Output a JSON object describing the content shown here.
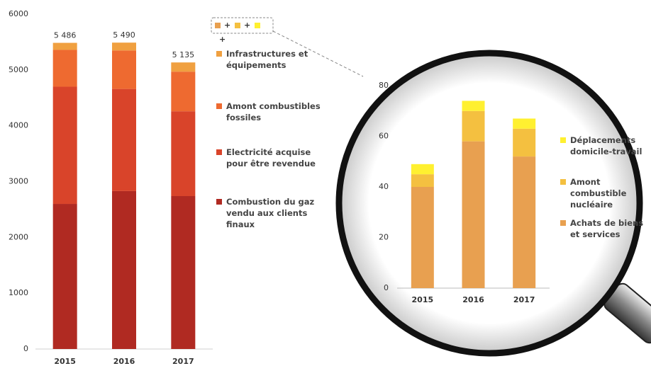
{
  "chart_data": [
    {
      "type": "bar",
      "stacked": true,
      "categories": [
        "2015",
        "2016",
        "2017"
      ],
      "series": [
        {
          "name": "Combustion du gaz vendu aux clients finaux",
          "color": "#b02a22",
          "values": [
            2600,
            2830,
            2740
          ]
        },
        {
          "name": "Electricité acquise pour être revendue",
          "color": "#d9442a",
          "values": [
            2100,
            1830,
            1520
          ]
        },
        {
          "name": "Amont combustibles fossiles",
          "color": "#ee6a30",
          "values": [
            660,
            690,
            710
          ]
        },
        {
          "name": "Infrastructures et équipements",
          "color": "#f0a040",
          "values": [
            126,
            140,
            165
          ]
        }
      ],
      "totals": [
        5486,
        5490,
        5135
      ],
      "total_labels": [
        "5 486",
        "5 490",
        "5 135"
      ],
      "ylim": [
        0,
        6000
      ],
      "yticks": [
        0,
        1000,
        2000,
        3000,
        4000,
        5000,
        6000
      ],
      "grid": false
    },
    {
      "type": "bar",
      "stacked": true,
      "categories": [
        "2015",
        "2016",
        "2017"
      ],
      "series": [
        {
          "name": "Achats de biens et services",
          "color": "#e8a050",
          "values": [
            40,
            58,
            52
          ]
        },
        {
          "name": "Amont combustible nucléaire",
          "color": "#f4c040",
          "values": [
            5,
            12,
            11
          ]
        },
        {
          "name": "Déplacements domicile-travail",
          "color": "#fff030",
          "values": [
            4,
            4,
            4
          ]
        }
      ],
      "ylim": [
        0,
        80
      ],
      "yticks": [
        0,
        20,
        40,
        60,
        80
      ],
      "grid": false
    }
  ],
  "connector_symbol": "+"
}
